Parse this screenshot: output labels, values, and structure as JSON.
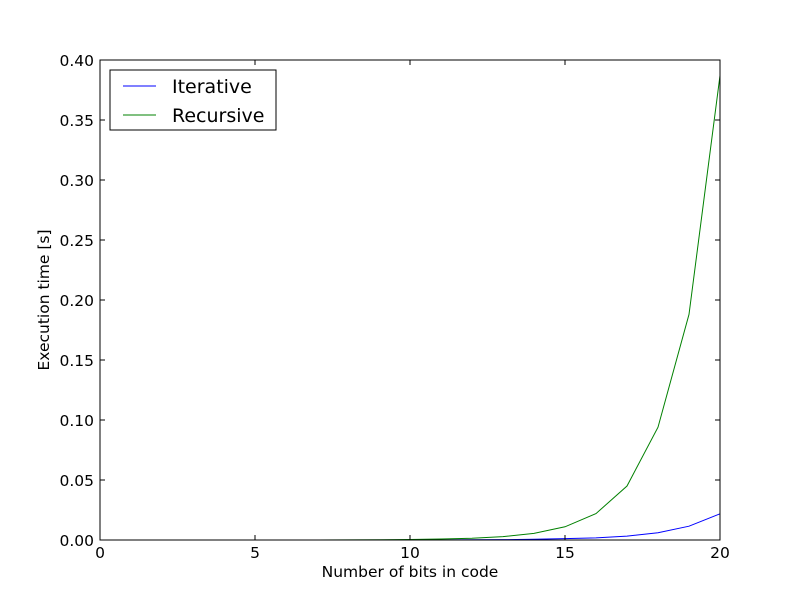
{
  "chart_data": {
    "type": "line",
    "title": "",
    "xlabel": "Number of bits in code",
    "ylabel": "Execution time [s]",
    "xlim": [
      0,
      20
    ],
    "ylim": [
      0.0,
      0.4
    ],
    "xticks": [
      0,
      5,
      10,
      15,
      20
    ],
    "xtick_labels": [
      "0",
      "5",
      "10",
      "15",
      "20"
    ],
    "yticks": [
      0.0,
      0.05,
      0.1,
      0.15,
      0.2,
      0.25,
      0.3,
      0.35,
      0.4
    ],
    "ytick_labels": [
      "0.00",
      "0.05",
      "0.10",
      "0.15",
      "0.20",
      "0.25",
      "0.30",
      "0.35",
      "0.40"
    ],
    "grid": false,
    "legend_position": "top-left",
    "x": [
      1,
      2,
      3,
      4,
      5,
      6,
      7,
      8,
      9,
      10,
      11,
      12,
      13,
      14,
      15,
      16,
      17,
      18,
      19,
      20
    ],
    "series": [
      {
        "name": "Iterative",
        "color": "#0000ff",
        "values": [
          0.0,
          0.0,
          0.0,
          0.0,
          0.0,
          0.0,
          0.0,
          0.0,
          0.0,
          0.0,
          0.0001,
          0.0002,
          0.0003,
          0.0006,
          0.0011,
          0.0018,
          0.0032,
          0.006,
          0.0115,
          0.0218
        ]
      },
      {
        "name": "Recursive",
        "color": "#008000",
        "values": [
          0.0,
          0.0,
          0.0,
          0.0,
          0.0,
          0.0,
          0.0,
          0.0001,
          0.0002,
          0.0004,
          0.0008,
          0.0015,
          0.0028,
          0.0055,
          0.011,
          0.022,
          0.045,
          0.094,
          0.188,
          0.387
        ]
      }
    ]
  }
}
